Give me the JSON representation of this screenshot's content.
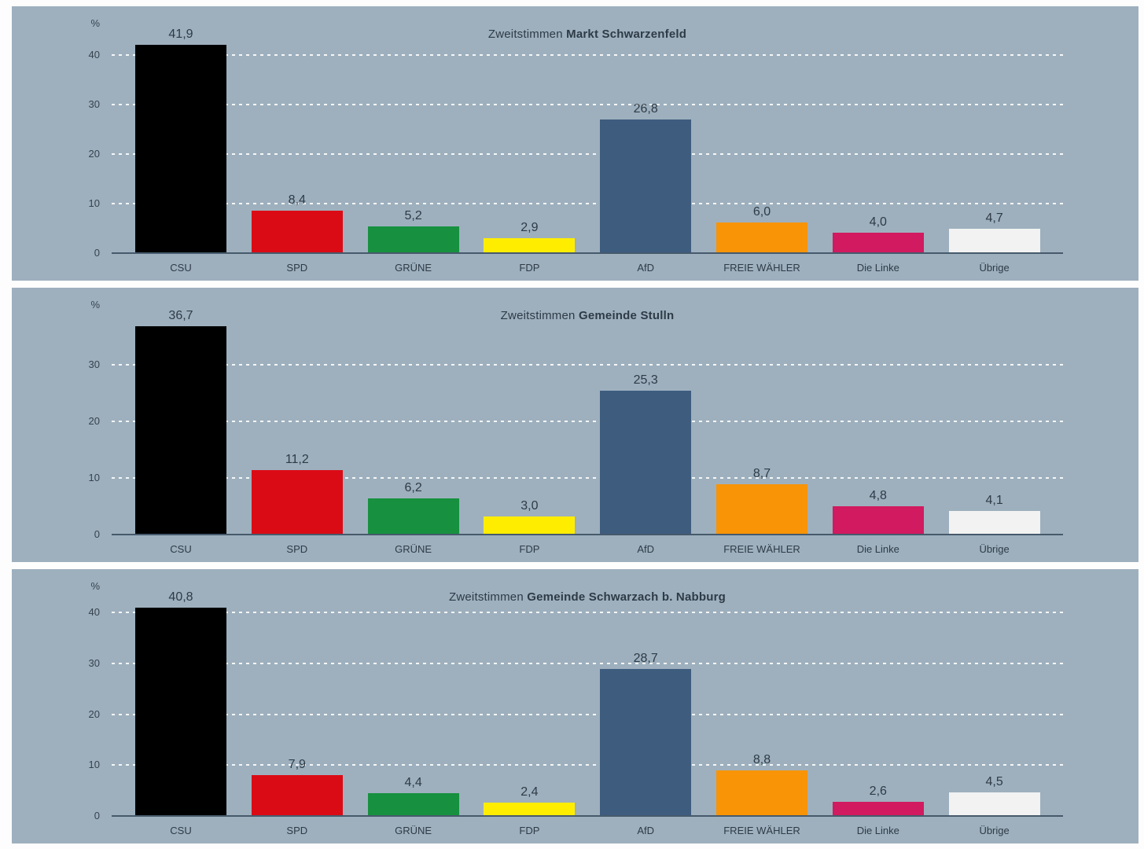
{
  "page": {
    "background": "#fdfdfd",
    "panel_background": "#9eb0be",
    "axis_color": "#465a6c",
    "grid_color": "#ffffff",
    "text_color": "#2e3b46"
  },
  "party_colors": {
    "CSU": "#000000",
    "SPD": "#db0b16",
    "GRÜNE": "#17913f",
    "FDP": "#ffed00",
    "AfD": "#3e5c7e",
    "FREIE WÄHLER": "#f89406",
    "Die Linke": "#d11a5f",
    "Übrige": "#f2f2f2"
  },
  "chart_data": [
    {
      "type": "bar",
      "title": "Zweitstimmen Markt Schwarzenfeld",
      "title_prefix": "Zweitstimmen ",
      "title_bold": "Markt Schwarzenfeld",
      "ylabel": "%",
      "yticks": [
        0,
        10,
        20,
        30,
        40
      ],
      "ylim": [
        0,
        43
      ],
      "grid": "horizontal-dashed",
      "legend": "none",
      "categories": [
        "CSU",
        "SPD",
        "GRÜNE",
        "FDP",
        "AfD",
        "FREIE WÄHLER",
        "Die Linke",
        "Übrige"
      ],
      "values": [
        41.9,
        8.4,
        5.2,
        2.9,
        26.8,
        6.0,
        4.0,
        4.7
      ],
      "value_labels": [
        "41,9",
        "8,4",
        "5,2",
        "2,9",
        "26,8",
        "6,0",
        "4,0",
        "4,7"
      ],
      "bar_colors": [
        "#000000",
        "#db0b16",
        "#17913f",
        "#ffed00",
        "#3e5c7e",
        "#f89406",
        "#d11a5f",
        "#f2f2f2"
      ]
    },
    {
      "type": "bar",
      "title": "Zweitstimmen Gemeinde Stulln",
      "title_prefix": "Zweitstimmen ",
      "title_bold": "Gemeinde Stulln",
      "ylabel": "%",
      "yticks": [
        0,
        10,
        20,
        30
      ],
      "ylim": [
        0,
        38
      ],
      "grid": "horizontal-dashed",
      "legend": "none",
      "categories": [
        "CSU",
        "SPD",
        "GRÜNE",
        "FDP",
        "AfD",
        "FREIE WÄHLER",
        "Die Linke",
        "Übrige"
      ],
      "values": [
        36.7,
        11.2,
        6.2,
        3.0,
        25.3,
        8.7,
        4.8,
        4.1
      ],
      "value_labels": [
        "36,7",
        "11,2",
        "6,2",
        "3,0",
        "25,3",
        "8,7",
        "4,8",
        "4,1"
      ],
      "bar_colors": [
        "#000000",
        "#db0b16",
        "#17913f",
        "#ffed00",
        "#3e5c7e",
        "#f89406",
        "#d11a5f",
        "#f2f2f2"
      ]
    },
    {
      "type": "bar",
      "title": "Zweitstimmen Gemeinde Schwarzach b. Nabburg",
      "title_prefix": "Zweitstimmen ",
      "title_bold": "Gemeinde Schwarzach b. Nabburg",
      "ylabel": "%",
      "yticks": [
        0,
        10,
        20,
        30,
        40
      ],
      "ylim": [
        0,
        42
      ],
      "grid": "horizontal-dashed",
      "legend": "none",
      "categories": [
        "CSU",
        "SPD",
        "GRÜNE",
        "FDP",
        "AfD",
        "FREIE WÄHLER",
        "Die Linke",
        "Übrige"
      ],
      "values": [
        40.8,
        7.9,
        4.4,
        2.4,
        28.7,
        8.8,
        2.6,
        4.5
      ],
      "value_labels": [
        "40,8",
        "7,9",
        "4,4",
        "2,4",
        "28,7",
        "8,8",
        "2,6",
        "4,5"
      ],
      "bar_colors": [
        "#000000",
        "#db0b16",
        "#17913f",
        "#ffed00",
        "#3e5c7e",
        "#f89406",
        "#d11a5f",
        "#f2f2f2"
      ]
    }
  ]
}
